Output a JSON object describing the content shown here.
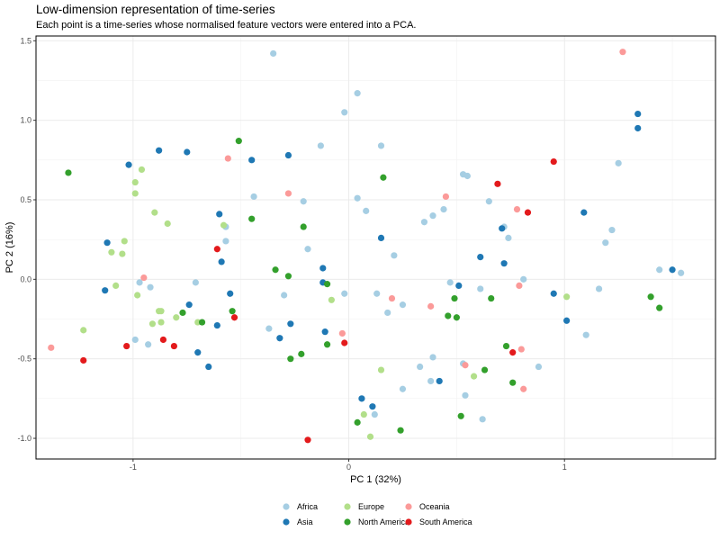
{
  "chart_data": {
    "type": "scatter",
    "title": "Low-dimension representation of time-series",
    "subtitle": "Each point is a time-series whose normalised feature vectors were entered into a PCA.",
    "xlabel": "PC 1 (32%)",
    "ylabel": "PC 2 (16%)",
    "xlim": [
      -1.45,
      1.7
    ],
    "ylim": [
      -1.13,
      1.53
    ],
    "xticks": [
      -1,
      0,
      1
    ],
    "yticks": [
      -1.0,
      -0.5,
      0.0,
      0.5,
      1.0,
      1.5
    ],
    "xtick_labels": [
      "-1",
      "0",
      "1"
    ],
    "ytick_labels": [
      "-1.0",
      "-0.5",
      "0.0",
      "0.5",
      "1.0",
      "1.5"
    ],
    "grid": true,
    "legend_position": "bottom",
    "series": [
      {
        "name": "Africa",
        "color": "#A6CEE3",
        "points": [
          [
            -0.35,
            1.42
          ],
          [
            0.04,
            1.17
          ],
          [
            -0.02,
            1.05
          ],
          [
            -0.13,
            0.84
          ],
          [
            0.15,
            0.84
          ],
          [
            -0.44,
            0.52
          ],
          [
            -0.21,
            0.49
          ],
          [
            0.04,
            0.51
          ],
          [
            0.08,
            0.43
          ],
          [
            -0.57,
            0.33
          ],
          [
            -0.57,
            0.24
          ],
          [
            -0.19,
            0.19
          ],
          [
            0.21,
            0.15
          ],
          [
            0.35,
            0.36
          ],
          [
            0.39,
            0.4
          ],
          [
            0.44,
            0.44
          ],
          [
            0.53,
            0.66
          ],
          [
            0.55,
            0.65
          ],
          [
            0.65,
            0.49
          ],
          [
            0.72,
            0.33
          ],
          [
            0.74,
            0.26
          ],
          [
            1.22,
            0.31
          ],
          [
            1.19,
            0.23
          ],
          [
            1.25,
            0.73
          ],
          [
            0.47,
            -0.02
          ],
          [
            0.61,
            -0.06
          ],
          [
            0.81,
            0.0
          ],
          [
            0.13,
            -0.09
          ],
          [
            0.25,
            -0.16
          ],
          [
            0.18,
            -0.21
          ],
          [
            -0.3,
            -0.1
          ],
          [
            -0.02,
            -0.09
          ],
          [
            -0.37,
            -0.31
          ],
          [
            -0.71,
            -0.02
          ],
          [
            -0.92,
            -0.05
          ],
          [
            -0.97,
            -0.02
          ],
          [
            -0.99,
            -0.38
          ],
          [
            -0.93,
            -0.41
          ],
          [
            0.33,
            -0.55
          ],
          [
            0.39,
            -0.49
          ],
          [
            0.38,
            -0.64
          ],
          [
            0.53,
            -0.53
          ],
          [
            0.54,
            -0.73
          ],
          [
            0.62,
            -0.88
          ],
          [
            0.88,
            -0.55
          ],
          [
            1.1,
            -0.35
          ],
          [
            1.16,
            -0.06
          ],
          [
            1.44,
            0.06
          ],
          [
            1.54,
            0.04
          ],
          [
            0.25,
            -0.69
          ],
          [
            0.12,
            -0.85
          ]
        ]
      },
      {
        "name": "Asia",
        "color": "#1F78B4",
        "points": [
          [
            -1.02,
            0.72
          ],
          [
            -0.88,
            0.81
          ],
          [
            -0.75,
            0.8
          ],
          [
            -0.45,
            0.75
          ],
          [
            -0.6,
            0.41
          ],
          [
            -0.59,
            0.11
          ],
          [
            -0.55,
            -0.09
          ],
          [
            -0.61,
            -0.29
          ],
          [
            -0.74,
            -0.16
          ],
          [
            -1.12,
            0.23
          ],
          [
            -1.13,
            -0.07
          ],
          [
            -0.28,
            0.78
          ],
          [
            -0.12,
            0.07
          ],
          [
            -0.12,
            -0.02
          ],
          [
            -0.11,
            -0.33
          ],
          [
            -0.27,
            -0.28
          ],
          [
            -0.32,
            -0.37
          ],
          [
            -0.7,
            -0.46
          ],
          [
            -0.65,
            -0.55
          ],
          [
            0.15,
            0.26
          ],
          [
            0.51,
            -0.04
          ],
          [
            0.61,
            0.14
          ],
          [
            0.71,
            0.32
          ],
          [
            0.72,
            0.1
          ],
          [
            0.95,
            -0.09
          ],
          [
            1.01,
            -0.26
          ],
          [
            1.09,
            0.42
          ],
          [
            1.34,
            1.04
          ],
          [
            1.34,
            0.95
          ],
          [
            1.5,
            0.06
          ],
          [
            0.06,
            -0.75
          ],
          [
            0.11,
            -0.8
          ],
          [
            0.42,
            -0.64
          ]
        ]
      },
      {
        "name": "Europe",
        "color": "#B2DF8A",
        "points": [
          [
            -0.96,
            0.69
          ],
          [
            -0.99,
            0.61
          ],
          [
            -0.99,
            0.54
          ],
          [
            -1.04,
            0.24
          ],
          [
            -1.1,
            0.17
          ],
          [
            -1.05,
            0.16
          ],
          [
            -0.9,
            0.42
          ],
          [
            -0.84,
            0.35
          ],
          [
            -1.08,
            -0.04
          ],
          [
            -0.98,
            -0.1
          ],
          [
            -0.88,
            -0.2
          ],
          [
            -0.87,
            -0.2
          ],
          [
            -0.87,
            -0.27
          ],
          [
            -0.91,
            -0.28
          ],
          [
            -0.8,
            -0.24
          ],
          [
            -0.7,
            -0.27
          ],
          [
            -0.58,
            0.34
          ],
          [
            -0.08,
            -0.13
          ],
          [
            -1.23,
            -0.32
          ],
          [
            0.15,
            -0.57
          ],
          [
            0.07,
            -0.85
          ],
          [
            0.1,
            -0.99
          ],
          [
            0.58,
            -0.61
          ],
          [
            1.01,
            -0.11
          ]
        ]
      },
      {
        "name": "North America",
        "color": "#33A02C",
        "points": [
          [
            -1.3,
            0.67
          ],
          [
            -0.51,
            0.87
          ],
          [
            -0.45,
            0.38
          ],
          [
            -0.21,
            0.33
          ],
          [
            0.16,
            0.64
          ],
          [
            -0.34,
            0.06
          ],
          [
            -0.28,
            0.02
          ],
          [
            -0.1,
            -0.03
          ],
          [
            -0.54,
            -0.2
          ],
          [
            -0.68,
            -0.27
          ],
          [
            -0.77,
            -0.21
          ],
          [
            -0.27,
            -0.5
          ],
          [
            -0.22,
            -0.47
          ],
          [
            -0.1,
            -0.41
          ],
          [
            0.46,
            -0.23
          ],
          [
            0.49,
            -0.12
          ],
          [
            0.5,
            -0.24
          ],
          [
            0.66,
            -0.12
          ],
          [
            0.73,
            -0.42
          ],
          [
            0.76,
            -0.65
          ],
          [
            0.63,
            -0.57
          ],
          [
            0.52,
            -0.86
          ],
          [
            0.24,
            -0.95
          ],
          [
            0.04,
            -0.9
          ],
          [
            1.4,
            -0.11
          ],
          [
            1.44,
            -0.18
          ]
        ]
      },
      {
        "name": "Oceania",
        "color": "#FB9A99",
        "points": [
          [
            1.27,
            1.43
          ],
          [
            -0.56,
            0.76
          ],
          [
            -0.28,
            0.54
          ],
          [
            0.45,
            0.52
          ],
          [
            0.78,
            0.44
          ],
          [
            -0.95,
            0.01
          ],
          [
            0.2,
            -0.12
          ],
          [
            0.38,
            -0.17
          ],
          [
            0.79,
            -0.04
          ],
          [
            -0.03,
            -0.34
          ],
          [
            0.54,
            -0.54
          ],
          [
            0.8,
            -0.44
          ],
          [
            0.81,
            -0.69
          ],
          [
            -1.38,
            -0.43
          ]
        ]
      },
      {
        "name": "South America",
        "color": "#E31A1C",
        "points": [
          [
            -0.61,
            0.19
          ],
          [
            -0.53,
            -0.24
          ],
          [
            -0.86,
            -0.38
          ],
          [
            -0.81,
            -0.42
          ],
          [
            -1.03,
            -0.42
          ],
          [
            -1.23,
            -0.51
          ],
          [
            0.69,
            0.6
          ],
          [
            0.83,
            0.42
          ],
          [
            0.95,
            0.74
          ],
          [
            -0.02,
            -0.4
          ],
          [
            0.76,
            -0.46
          ],
          [
            -0.19,
            -1.01
          ]
        ]
      }
    ]
  }
}
